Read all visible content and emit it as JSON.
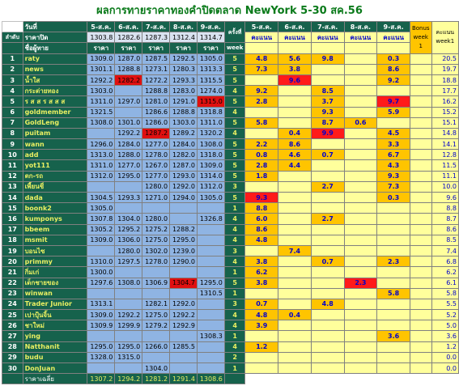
{
  "title": "ผลการทายราคาทองคำปิดตลาด NewYork 5-30 สค.56",
  "headers": {
    "rank": "ลำดับ",
    "day": "วันที่",
    "close_price": "ราคาปิด",
    "player": "ชื่อผู้ทาย",
    "times": "ครั้งที่",
    "week": "week",
    "price": "ราคา",
    "score": "คะแนน",
    "bonus": "Bonus week 1",
    "total": "คะแนน week1",
    "average": "ราคาเฉลี่ย"
  },
  "dates": [
    "5-ส.ค.",
    "6-ส.ค.",
    "7-ส.ค.",
    "8-ส.ค.",
    "9-ส.ค."
  ],
  "close_prices": [
    "1303.8",
    "1282.6",
    "1287.3",
    "1312.4",
    "1314.7"
  ],
  "rows": [
    {
      "n": "1",
      "name": "raty",
      "p": [
        "1309.0",
        "1287.0",
        "1287.5",
        "1292.5",
        "1305.0"
      ],
      "w": "5",
      "s": [
        "4.8",
        "5.6",
        "9.8",
        "",
        "0.3"
      ],
      "t": "20.5"
    },
    {
      "n": "2",
      "name": "news",
      "p": [
        "1301.1",
        "1288.8",
        "1273.1",
        "1280.3",
        "1313.3"
      ],
      "w": "5",
      "s": [
        "7.3",
        "3.8",
        "",
        "",
        "8.6"
      ],
      "t": "19.7"
    },
    {
      "n": "3",
      "name": "น้ำใส",
      "p": [
        "1292.2",
        "1282.2",
        "1272.2",
        "1293.3",
        "1315.5"
      ],
      "w": "5",
      "s": [
        "",
        "9.6",
        "",
        "",
        "9.2"
      ],
      "t": "18.8"
    },
    {
      "n": "4",
      "name": "กระต่ายทอง",
      "p": [
        "1303.0",
        "",
        "1288.8",
        "1283.0",
        "1274.0"
      ],
      "w": "4",
      "s": [
        "9.2",
        "",
        "8.5",
        "",
        ""
      ],
      "t": "17.7"
    },
    {
      "n": "5",
      "name": "ร ส ส ร ส ส ส",
      "p": [
        "1311.0",
        "1297.0",
        "1281.0",
        "1291.0",
        "1315.0"
      ],
      "w": "5",
      "s": [
        "2.8",
        "",
        "3.7",
        "",
        "9.7"
      ],
      "t": "16.2"
    },
    {
      "n": "6",
      "name": "goldmember",
      "p": [
        "1321.5",
        "",
        "1286.6",
        "1288.8",
        "1318.8"
      ],
      "w": "4",
      "s": [
        "",
        "",
        "9.3",
        "",
        "5.9"
      ],
      "t": "15.2"
    },
    {
      "n": "7",
      "name": "GoldLeng",
      "p": [
        "1308.0",
        "1301.0",
        "1286.0",
        "1303.0",
        "1311.0"
      ],
      "w": "5",
      "s": [
        "5.8",
        "",
        "8.7",
        "0.6",
        ""
      ],
      "t": "15.1"
    },
    {
      "n": "8",
      "name": "puitam",
      "p": [
        "",
        "1292.2",
        "1287.2",
        "1289.2",
        "1320.2"
      ],
      "w": "4",
      "s": [
        "",
        "0.4",
        "9.9",
        "",
        "4.5"
      ],
      "t": "14.8"
    },
    {
      "n": "9",
      "name": "wann",
      "p": [
        "1296.0",
        "1284.0",
        "1277.0",
        "1284.0",
        "1308.0"
      ],
      "w": "5",
      "s": [
        "2.2",
        "8.6",
        "",
        "",
        "3.3"
      ],
      "t": "14.1"
    },
    {
      "n": "10",
      "name": "add",
      "p": [
        "1313.0",
        "1288.0",
        "1278.0",
        "1282.0",
        "1318.0"
      ],
      "w": "5",
      "s": [
        "0.8",
        "4.6",
        "0.7",
        "",
        "6.7"
      ],
      "t": "12.8"
    },
    {
      "n": "11",
      "name": "yot111",
      "p": [
        "1311.0",
        "1277.0",
        "1267.0",
        "1287.0",
        "1309.0"
      ],
      "w": "5",
      "s": [
        "2.8",
        "4.4",
        "",
        "",
        "4.3"
      ],
      "t": "11.5"
    },
    {
      "n": "12",
      "name": "ตก-รถ",
      "p": [
        "1312.0",
        "1295.0",
        "1277.0",
        "1293.0",
        "1314.0"
      ],
      "w": "5",
      "s": [
        "1.8",
        "",
        "",
        "",
        "9.3"
      ],
      "t": "11.1"
    },
    {
      "n": "13",
      "name": "เพี้ยนซี่",
      "p": [
        "",
        "",
        "1280.0",
        "1292.0",
        "1312.0"
      ],
      "w": "3",
      "s": [
        "",
        "",
        "2.7",
        "",
        "7.3"
      ],
      "t": "10.0"
    },
    {
      "n": "14",
      "name": "dada",
      "p": [
        "1304.5",
        "1293.3",
        "1271.0",
        "1294.0",
        "1305.0"
      ],
      "w": "5",
      "s": [
        "9.3",
        "",
        "",
        "",
        "0.3"
      ],
      "t": "9.6"
    },
    {
      "n": "15",
      "name": "boonk2",
      "p": [
        "1305.0",
        "",
        "",
        "",
        ""
      ],
      "w": "1",
      "s": [
        "8.8",
        "",
        "",
        "",
        ""
      ],
      "t": "8.8"
    },
    {
      "n": "16",
      "name": "kumponys",
      "p": [
        "1307.8",
        "1304.0",
        "1280.0",
        "",
        "1326.8"
      ],
      "w": "4",
      "s": [
        "6.0",
        "",
        "2.7",
        "",
        ""
      ],
      "t": "8.7"
    },
    {
      "n": "17",
      "name": "bbeem",
      "p": [
        "1305.2",
        "1295.2",
        "1275.2",
        "1288.2",
        ""
      ],
      "w": "4",
      "s": [
        "8.6",
        "",
        "",
        "",
        ""
      ],
      "t": "8.6"
    },
    {
      "n": "18",
      "name": "msmit",
      "p": [
        "1309.0",
        "1306.0",
        "1275.0",
        "1295.0",
        ""
      ],
      "w": "4",
      "s": [
        "4.8",
        "",
        "",
        "",
        ""
      ],
      "t": "8.5"
    },
    {
      "n": "19",
      "name": "บอนไซ",
      "p": [
        "",
        "1280.0",
        "1302.0",
        "1239.0",
        ""
      ],
      "w": "3",
      "s": [
        "",
        "7.4",
        "",
        "",
        ""
      ],
      "t": "7.4"
    },
    {
      "n": "20",
      "name": "primmy",
      "p": [
        "1310.0",
        "1297.5",
        "1278.0",
        "1290.0",
        ""
      ],
      "w": "4",
      "s": [
        "3.8",
        "",
        "0.7",
        "",
        "2.3"
      ],
      "t": "6.8"
    },
    {
      "n": "21",
      "name": "กิ่มเก่",
      "p": [
        "1300.0",
        "",
        "",
        "",
        ""
      ],
      "w": "1",
      "s": [
        "6.2",
        "",
        "",
        "",
        ""
      ],
      "t": "6.2"
    },
    {
      "n": "22",
      "name": "เด็กชายของ",
      "p": [
        "1297.6",
        "1308.0",
        "1306.9",
        "1304.7",
        "1295.0"
      ],
      "w": "5",
      "s": [
        "3.8",
        "",
        "",
        "2.3",
        ""
      ],
      "t": "6.1"
    },
    {
      "n": "23",
      "name": "winwan",
      "p": [
        "",
        "",
        "",
        "",
        "1310.5"
      ],
      "w": "1",
      "s": [
        "",
        "",
        "",
        "",
        "5.8"
      ],
      "t": "5.8"
    },
    {
      "n": "24",
      "name": "Trader Junior",
      "p": [
        "1313.1",
        "",
        "1282.1",
        "1292.0",
        ""
      ],
      "w": "3",
      "s": [
        "0.7",
        "",
        "4.8",
        "",
        ""
      ],
      "t": "5.5"
    },
    {
      "n": "25",
      "name": "เปาปุ้นจิ้น",
      "p": [
        "1309.0",
        "1292.2",
        "1275.0",
        "1292.2",
        ""
      ],
      "w": "4",
      "s": [
        "4.8",
        "0.4",
        "",
        "",
        ""
      ],
      "t": "5.2"
    },
    {
      "n": "26",
      "name": "ชาใหม่",
      "p": [
        "1309.9",
        "1299.9",
        "1279.2",
        "1292.9",
        ""
      ],
      "w": "4",
      "s": [
        "3.9",
        "",
        "",
        "",
        ""
      ],
      "t": "5.0"
    },
    {
      "n": "27",
      "name": "ying",
      "p": [
        "",
        "",
        "",
        "",
        "1308.3"
      ],
      "w": "1",
      "s": [
        "",
        "",
        "",
        "",
        "3.6"
      ],
      "t": "3.6"
    },
    {
      "n": "28",
      "name": "Natthanit",
      "p": [
        "1295.0",
        "1295.0",
        "1266.0",
        "1285.5",
        ""
      ],
      "w": "4",
      "s": [
        "1.2",
        "",
        "",
        "",
        ""
      ],
      "t": "1.2"
    },
    {
      "n": "29",
      "name": "budu",
      "p": [
        "1328.0",
        "1315.0",
        "",
        "",
        ""
      ],
      "w": "2",
      "s": [
        "",
        "",
        "",
        "",
        ""
      ],
      "t": "0.0"
    },
    {
      "n": "30",
      "name": "DonJuan",
      "p": [
        "",
        "",
        "1304.0",
        "",
        ""
      ],
      "w": "1",
      "s": [
        "",
        "",
        "",
        "",
        ""
      ],
      "t": "0.0"
    }
  ],
  "averages": [
    "1307.2",
    "1294.2",
    "1281.2",
    "1291.4",
    "1308.6"
  ],
  "colors": {
    "header_bg": "#16624c",
    "price_bg": "#8fb4e3",
    "score_bg": "#ffff9c",
    "score_highlight": "#ffc400",
    "score_top": "#ff1a1a",
    "name_text": "#e9ef62",
    "title_text": "#0a7a1a"
  },
  "red_price_cells": [
    [
      3,
      2
    ],
    [
      5,
      5
    ],
    [
      8,
      3
    ],
    [
      22,
      4
    ]
  ],
  "orange_score_cells": [
    [
      1,
      1
    ],
    [
      1,
      2
    ],
    [
      1,
      3
    ],
    [
      1,
      5
    ],
    [
      2,
      1
    ],
    [
      2,
      2
    ],
    [
      2,
      5
    ],
    [
      3,
      5
    ],
    [
      4,
      1
    ],
    [
      4,
      3
    ],
    [
      5,
      1
    ],
    [
      5,
      3
    ],
    [
      6,
      3
    ],
    [
      6,
      5
    ],
    [
      7,
      1
    ],
    [
      7,
      3
    ],
    [
      7,
      4
    ],
    [
      8,
      2
    ],
    [
      8,
      5
    ],
    [
      9,
      1
    ],
    [
      9,
      2
    ],
    [
      9,
      5
    ],
    [
      10,
      1
    ],
    [
      10,
      2
    ],
    [
      10,
      3
    ],
    [
      10,
      5
    ],
    [
      11,
      1
    ],
    [
      11,
      2
    ],
    [
      11,
      5
    ],
    [
      12,
      1
    ],
    [
      12,
      5
    ],
    [
      13,
      3
    ],
    [
      13,
      5
    ],
    [
      14,
      5
    ],
    [
      15,
      1
    ],
    [
      16,
      1
    ],
    [
      16,
      3
    ],
    [
      17,
      1
    ],
    [
      18,
      1
    ],
    [
      19,
      2
    ],
    [
      20,
      1
    ],
    [
      20,
      3
    ],
    [
      20,
      5
    ],
    [
      21,
      1
    ],
    [
      22,
      1
    ],
    [
      23,
      5
    ],
    [
      24,
      1
    ],
    [
      24,
      3
    ],
    [
      25,
      1
    ],
    [
      25,
      2
    ],
    [
      26,
      1
    ],
    [
      27,
      5
    ],
    [
      28,
      1
    ]
  ],
  "red_score_cells": [
    [
      3,
      2
    ],
    [
      5,
      5
    ],
    [
      8,
      3
    ],
    [
      14,
      1
    ],
    [
      22,
      4
    ]
  ]
}
